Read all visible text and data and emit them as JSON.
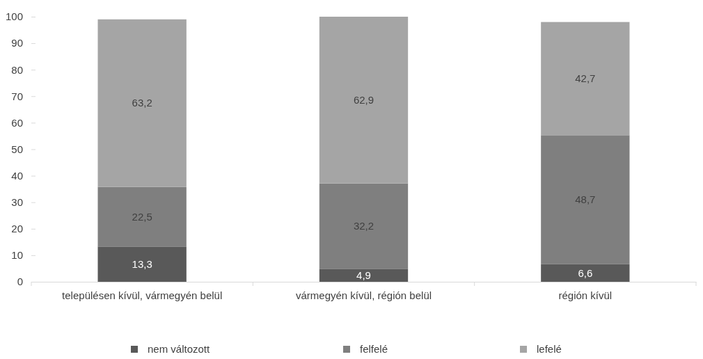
{
  "chart_data": {
    "type": "bar",
    "stacked": true,
    "categories": [
      "településen kívül, vármegyén belül",
      "vármegyén kívül, régión belül",
      "régión kívül"
    ],
    "series": [
      {
        "name": "nem változott",
        "color": "#595959",
        "values": [
          13.3,
          4.9,
          6.6
        ],
        "value_labels": [
          "13,3",
          "4,9",
          "6,6"
        ]
      },
      {
        "name": "felfelé",
        "color": "#7f7f7f",
        "values": [
          22.5,
          32.2,
          48.7
        ],
        "value_labels": [
          "22,5",
          "32,2",
          "48,7"
        ]
      },
      {
        "name": "lefelé",
        "color": "#a5a5a5",
        "values": [
          63.2,
          62.9,
          42.7
        ],
        "value_labels": [
          "63,2",
          "62,9",
          "42,7"
        ]
      }
    ],
    "ylim": [
      0,
      100
    ],
    "yticks": [
      0,
      10,
      20,
      30,
      40,
      50,
      60,
      70,
      80,
      90,
      100
    ],
    "legend": "bottom"
  }
}
